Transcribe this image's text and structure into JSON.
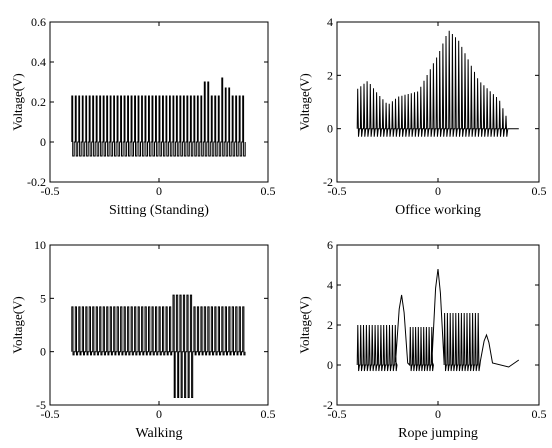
{
  "chart_data": [
    {
      "type": "line",
      "xlabel": "Sitting (Standing)",
      "ylabel": "Voltage(V)",
      "xlim": [
        -0.5,
        0.5
      ],
      "ylim": [
        -0.2,
        0.6
      ],
      "xticks": [
        "-0.5",
        "0",
        "0.5"
      ],
      "yticks": [
        "-0.2",
        "0",
        "0.2",
        "0.4",
        "0.6"
      ],
      "signal": {
        "x_start": -0.4,
        "x_end": 0.4,
        "cycles": 50,
        "low": -0.07,
        "high": 0.23,
        "baseline": 0.0,
        "spikes": [
          {
            "x": 0.22,
            "y": 0.3
          },
          {
            "x": 0.29,
            "y": 0.32
          },
          {
            "x": 0.31,
            "y": 0.27
          }
        ]
      }
    },
    {
      "type": "line",
      "xlabel": "Office working",
      "ylabel": "Voltage(V)",
      "xlim": [
        -0.5,
        0.5
      ],
      "ylim": [
        -2,
        4
      ],
      "xticks": [
        "-0.5",
        "0",
        "0.5"
      ],
      "yticks": [
        "-2",
        "0",
        "2",
        "4"
      ],
      "signal": {
        "x_start": -0.4,
        "x_end": 0.35,
        "cycles": 48,
        "low": -0.3,
        "envelope_x": [
          -0.4,
          -0.35,
          -0.3,
          -0.25,
          -0.2,
          -0.1,
          0.0,
          0.05,
          0.1,
          0.2,
          0.3,
          0.35
        ],
        "envelope_y": [
          1.5,
          1.8,
          1.3,
          0.9,
          1.2,
          1.4,
          2.8,
          3.7,
          3.3,
          1.8,
          1.1,
          0.2
        ],
        "tail_end": 0.4,
        "tail_y": 0.0
      }
    },
    {
      "type": "line",
      "xlabel": "Walking",
      "ylabel": "Voltage(V)",
      "xlim": [
        -0.5,
        0.5
      ],
      "ylim": [
        -5,
        10
      ],
      "xticks": [
        "-0.5",
        "0",
        "0.5"
      ],
      "yticks": [
        "-5",
        "0",
        "5",
        "10"
      ],
      "signal": {
        "x_start": -0.4,
        "x_end": 0.4,
        "cycles": 50,
        "low": -0.3,
        "high": 4.2,
        "burst": {
          "x_from": 0.06,
          "x_to": 0.16,
          "high": 5.3,
          "low": -4.3
        }
      }
    },
    {
      "type": "line",
      "xlabel": "Rope jumping",
      "ylabel": "Voltage(V)",
      "xlim": [
        -0.5,
        0.5
      ],
      "ylim": [
        -2,
        6
      ],
      "xticks": [
        "-0.5",
        "0",
        "0.5"
      ],
      "yticks": [
        "-2",
        "0",
        "2",
        "4",
        "6"
      ],
      "signal": {
        "x_start": -0.4,
        "x_end": 0.4,
        "low": -0.3,
        "segments": [
          {
            "from": -0.4,
            "to": -0.2,
            "cycles": 14,
            "high": 2.0
          },
          {
            "peak_at": -0.18,
            "peak": 3.5
          },
          {
            "from": -0.14,
            "to": -0.02,
            "cycles": 9,
            "high": 1.9
          },
          {
            "peak_at": 0.0,
            "peak": 4.8
          },
          {
            "from": 0.03,
            "to": 0.21,
            "cycles": 13,
            "high": 2.6
          },
          {
            "peak_at": 0.24,
            "peak": 1.5
          }
        ],
        "tail_end": 0.4,
        "tail_y": -0.05
      }
    }
  ]
}
